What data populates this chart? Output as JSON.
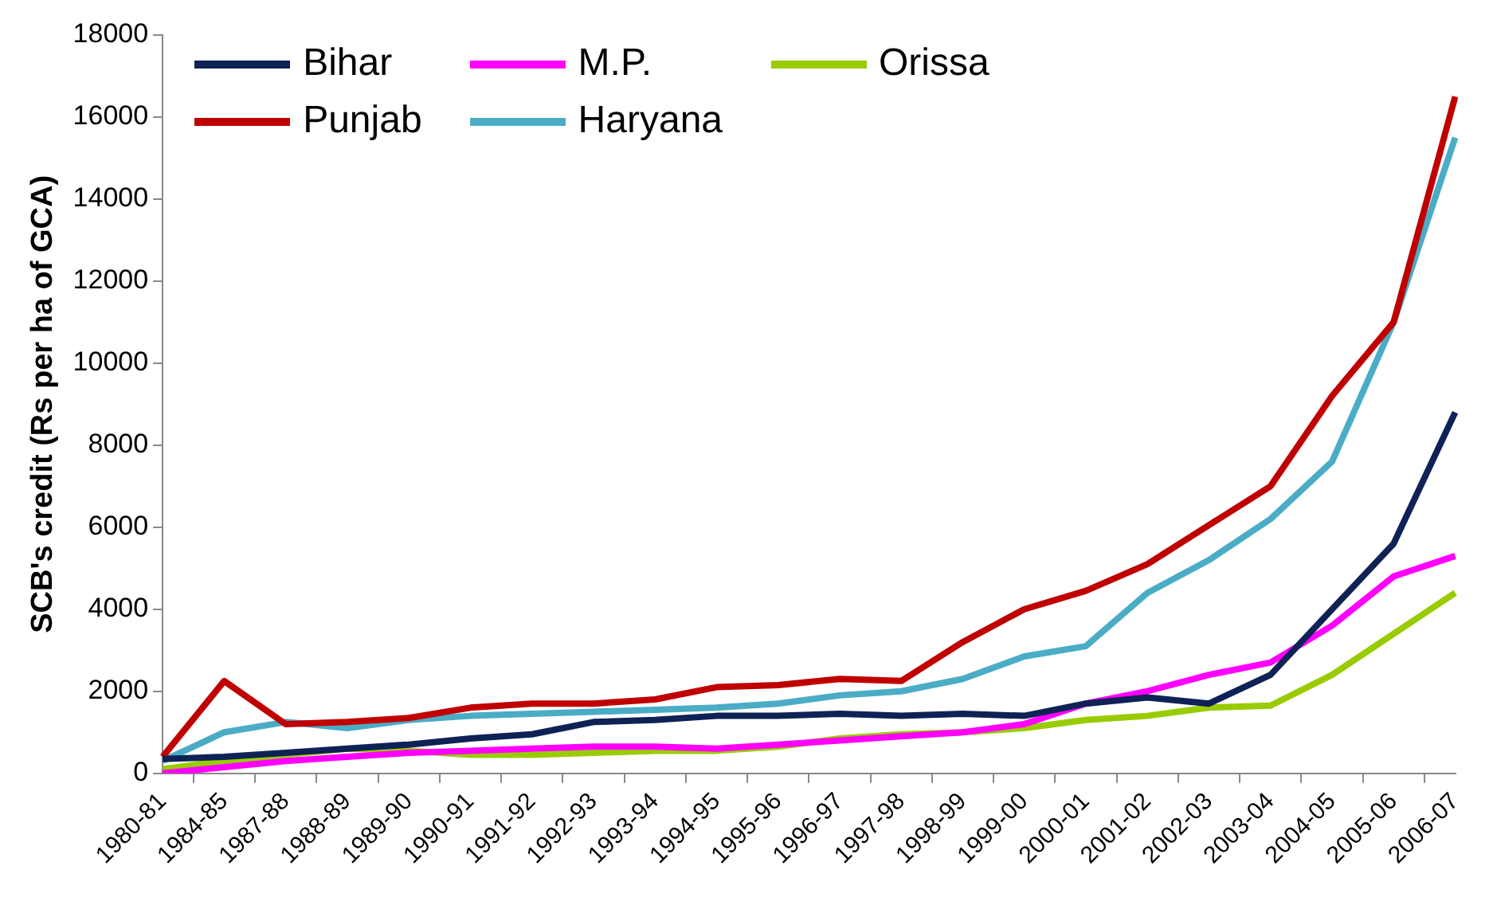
{
  "chart_data": {
    "type": "line",
    "ylabel": "SCB's credit (Rs per ha of GCA)",
    "categories": [
      "1980-81",
      "1984-85",
      "1987-88",
      "1988-89",
      "1989-90",
      "1990-91",
      "1991-92",
      "1992-93",
      "1993-94",
      "1994-95",
      "1995-96",
      "1996-97",
      "1997-98",
      "1998-99",
      "1999-00",
      "2000-01",
      "2001-02",
      "2002-03",
      "2003-04",
      "2004-05",
      "2005-06",
      "2006-07"
    ],
    "series": [
      {
        "name": "Bihar",
        "color": "#0f2256",
        "values": [
          350,
          400,
          500,
          600,
          700,
          850,
          950,
          1250,
          1300,
          1400,
          1400,
          1450,
          1400,
          1450,
          1400,
          1700,
          1850,
          1700,
          2400,
          4000,
          5600,
          8800
        ]
      },
      {
        "name": "M.P.",
        "color": "#ff00ff",
        "values": [
          0,
          150,
          300,
          400,
          500,
          550,
          600,
          650,
          650,
          600,
          700,
          800,
          900,
          1000,
          1200,
          1700,
          2000,
          2400,
          2700,
          3600,
          4800,
          5300
        ]
      },
      {
        "name": "Orissa",
        "color": "#99cc00",
        "values": [
          100,
          300,
          450,
          600,
          550,
          450,
          450,
          500,
          550,
          550,
          650,
          850,
          950,
          1000,
          1100,
          1300,
          1400,
          1600,
          1650,
          2400,
          3400,
          4400
        ]
      },
      {
        "name": "Punjab",
        "color": "#c00000",
        "values": [
          400,
          2250,
          1200,
          1250,
          1350,
          1600,
          1700,
          1700,
          1800,
          2100,
          2150,
          2300,
          2250,
          3200,
          4000,
          4450,
          5100,
          6050,
          7000,
          9200,
          11000,
          16500
        ]
      },
      {
        "name": "Haryana",
        "color": "#4bacc6",
        "values": [
          300,
          1000,
          1250,
          1100,
          1300,
          1400,
          1450,
          1500,
          1550,
          1600,
          1700,
          1900,
          2000,
          2300,
          2850,
          3100,
          4400,
          5200,
          6200,
          7600,
          11000,
          15500
        ]
      }
    ],
    "ylim": [
      0,
      18000
    ],
    "yticks": [
      0,
      2000,
      4000,
      6000,
      8000,
      10000,
      12000,
      14000,
      16000,
      18000
    ],
    "grid": false,
    "legend": "top left",
    "marker": "none",
    "line_style": "solid"
  }
}
